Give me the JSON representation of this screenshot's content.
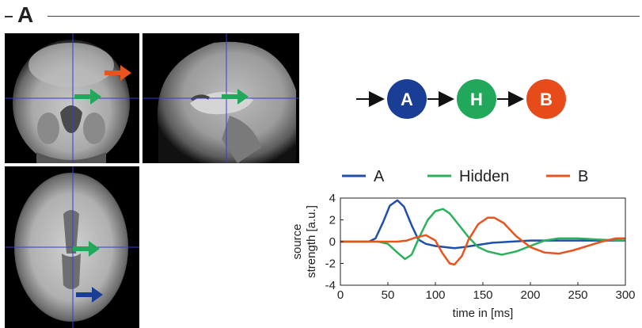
{
  "panel": {
    "label": "A"
  },
  "diagram": {
    "nodes": [
      {
        "label": "A",
        "color": "#1a3d96"
      },
      {
        "label": "H",
        "color": "#22a85a"
      },
      {
        "label": "B",
        "color": "#e84b1a"
      }
    ]
  },
  "arrow_colors": {
    "orange": "#e8541e",
    "green": "#22a85a",
    "blue": "#1a3d96"
  },
  "chart_data": {
    "type": "line",
    "xlabel": "time in [ms]",
    "ylabel": [
      "source",
      "strength [a.u.]"
    ],
    "xlim": [
      0,
      300
    ],
    "ylim": [
      -4,
      4
    ],
    "xticks": [
      0,
      50,
      100,
      150,
      200,
      250,
      300
    ],
    "yticks": [
      4,
      2,
      0,
      -2,
      -4
    ],
    "legend_position": "top",
    "grid": false,
    "series": [
      {
        "name": "A",
        "color": "#1f4fa8",
        "x": [
          0,
          30,
          37,
          45,
          52,
          60,
          67,
          75,
          82,
          90,
          100,
          110,
          120,
          130,
          145,
          160,
          180,
          200,
          230,
          260,
          300
        ],
        "y": [
          0,
          0,
          0.3,
          1.8,
          3.3,
          3.8,
          3.2,
          1.5,
          0.2,
          -0.2,
          -0.4,
          -0.5,
          -0.6,
          -0.5,
          -0.3,
          -0.1,
          0.0,
          0.1,
          0.1,
          0.1,
          0.1
        ]
      },
      {
        "name": "Hidden",
        "color": "#2bb05c",
        "x": [
          0,
          40,
          50,
          60,
          68,
          75,
          83,
          92,
          100,
          108,
          115,
          125,
          135,
          145,
          155,
          170,
          185,
          200,
          215,
          230,
          250,
          270,
          300
        ],
        "y": [
          0,
          0,
          -0.2,
          -1.0,
          -1.6,
          -1.2,
          0.4,
          2.0,
          2.8,
          3.0,
          2.6,
          1.5,
          0.4,
          -0.5,
          -0.9,
          -1.2,
          -0.9,
          -0.4,
          0.1,
          0.3,
          0.3,
          0.2,
          0.1
        ]
      },
      {
        "name": "B",
        "color": "#e8541e",
        "x": [
          0,
          60,
          70,
          80,
          90,
          100,
          107,
          115,
          120,
          128,
          135,
          145,
          155,
          162,
          172,
          185,
          200,
          215,
          230,
          245,
          260,
          275,
          290,
          300
        ],
        "y": [
          0,
          0,
          0.1,
          0.4,
          0.6,
          0.1,
          -1.0,
          -2.0,
          -2.1,
          -1.3,
          0.2,
          1.6,
          2.2,
          2.2,
          1.7,
          0.5,
          -0.5,
          -1.0,
          -1.1,
          -0.8,
          -0.4,
          0.0,
          0.3,
          0.3
        ]
      }
    ]
  }
}
